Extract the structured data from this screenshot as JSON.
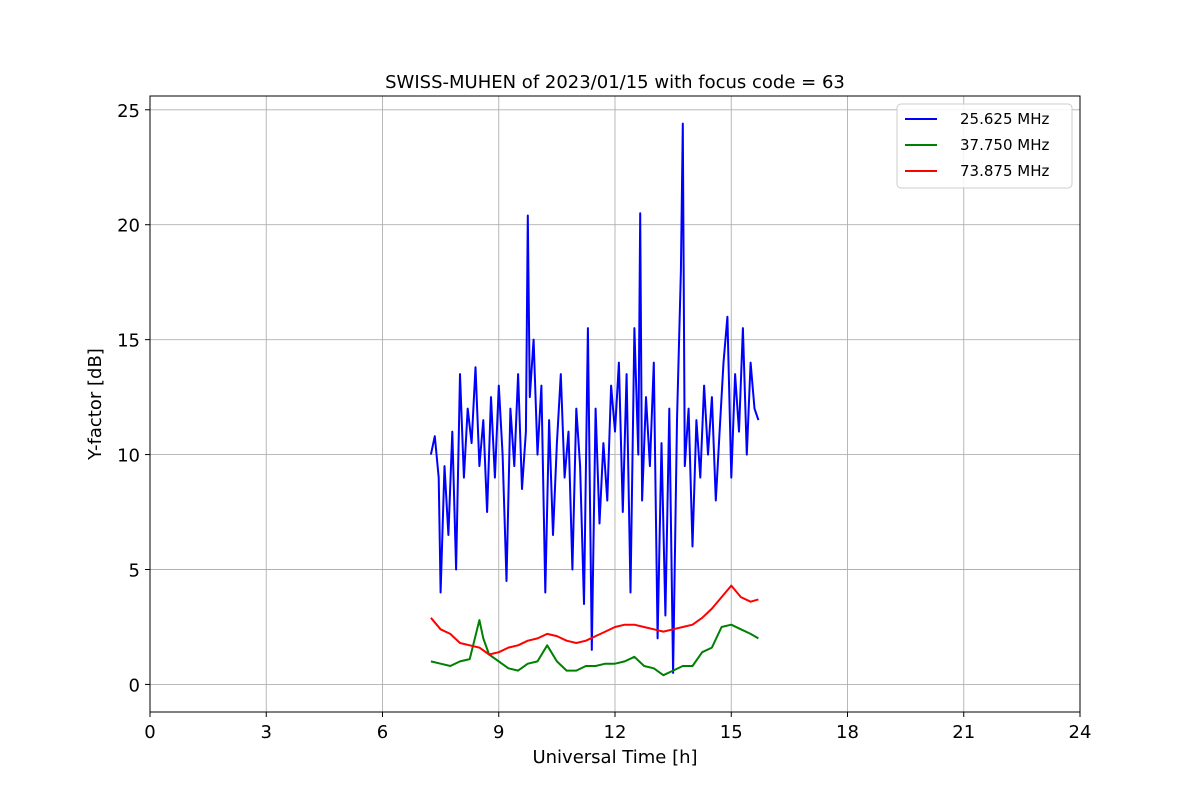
{
  "chart_data": {
    "type": "line",
    "title": "SWISS-MUHEN of 2023/01/15 with focus code = 63",
    "xlabel": "Universal Time [h]",
    "ylabel": "Y-factor [dB]",
    "xlim": [
      0,
      24
    ],
    "ylim": [
      -1.2,
      25.6
    ],
    "x_ticks": [
      0,
      3,
      6,
      9,
      12,
      15,
      18,
      21,
      24
    ],
    "y_ticks": [
      0,
      5,
      10,
      15,
      20,
      25
    ],
    "grid": true,
    "legend_position": "top-right",
    "series": [
      {
        "name": "25.625 MHz",
        "color": "#0000ff",
        "x": [
          7.25,
          7.35,
          7.45,
          7.5,
          7.6,
          7.7,
          7.8,
          7.9,
          8.0,
          8.1,
          8.2,
          8.3,
          8.4,
          8.5,
          8.6,
          8.7,
          8.8,
          8.9,
          9.0,
          9.1,
          9.2,
          9.3,
          9.4,
          9.5,
          9.6,
          9.7,
          9.75,
          9.8,
          9.9,
          10.0,
          10.1,
          10.2,
          10.3,
          10.4,
          10.5,
          10.6,
          10.7,
          10.8,
          10.9,
          11.0,
          11.1,
          11.2,
          11.3,
          11.4,
          11.5,
          11.6,
          11.7,
          11.8,
          11.9,
          12.0,
          12.1,
          12.2,
          12.3,
          12.4,
          12.5,
          12.6,
          12.65,
          12.7,
          12.8,
          12.9,
          13.0,
          13.1,
          13.2,
          13.3,
          13.4,
          13.5,
          13.6,
          13.7,
          13.75,
          13.8,
          13.9,
          14.0,
          14.1,
          14.2,
          14.3,
          14.4,
          14.5,
          14.6,
          14.7,
          14.8,
          14.9,
          15.0,
          15.1,
          15.2,
          15.3,
          15.4,
          15.5,
          15.6,
          15.7
        ],
        "y": [
          10.0,
          10.8,
          9.0,
          4.0,
          9.5,
          6.5,
          11.0,
          5.0,
          13.5,
          9.0,
          12.0,
          10.5,
          13.8,
          9.5,
          11.5,
          7.5,
          12.5,
          9.0,
          13.0,
          10.0,
          4.5,
          12.0,
          9.5,
          13.5,
          8.5,
          11.0,
          20.4,
          12.5,
          15.0,
          10.0,
          13.0,
          4.0,
          11.5,
          6.5,
          10.5,
          13.5,
          9.0,
          11.0,
          5.0,
          12.0,
          9.5,
          3.5,
          15.5,
          1.5,
          12.0,
          7.0,
          10.5,
          8.0,
          13.0,
          11.0,
          14.0,
          7.5,
          13.5,
          4.0,
          15.5,
          10.0,
          20.5,
          8.0,
          12.5,
          9.5,
          14.0,
          2.0,
          10.5,
          3.0,
          12.0,
          0.5,
          11.5,
          18.0,
          24.4,
          9.5,
          12.0,
          6.0,
          11.5,
          9.0,
          13.0,
          10.0,
          12.5,
          8.0,
          11.0,
          14.0,
          16.0,
          9.0,
          13.5,
          11.0,
          15.5,
          10.0,
          14.0,
          12.0,
          11.5
        ]
      },
      {
        "name": "37.750 MHz",
        "color": "#008000",
        "x": [
          7.25,
          7.5,
          7.75,
          8.0,
          8.25,
          8.5,
          8.6,
          8.75,
          9.0,
          9.25,
          9.5,
          9.75,
          10.0,
          10.25,
          10.5,
          10.75,
          11.0,
          11.25,
          11.5,
          11.75,
          12.0,
          12.25,
          12.5,
          12.75,
          13.0,
          13.25,
          13.5,
          13.75,
          14.0,
          14.25,
          14.5,
          14.75,
          15.0,
          15.25,
          15.5,
          15.7
        ],
        "y": [
          1.0,
          0.9,
          0.8,
          1.0,
          1.1,
          2.8,
          2.0,
          1.3,
          1.0,
          0.7,
          0.6,
          0.9,
          1.0,
          1.7,
          1.0,
          0.6,
          0.6,
          0.8,
          0.8,
          0.9,
          0.9,
          1.0,
          1.2,
          0.8,
          0.7,
          0.4,
          0.6,
          0.8,
          0.8,
          1.4,
          1.6,
          2.5,
          2.6,
          2.4,
          2.2,
          2.0
        ]
      },
      {
        "name": "73.875 MHz",
        "color": "#ff0000",
        "x": [
          7.25,
          7.5,
          7.75,
          8.0,
          8.25,
          8.5,
          8.75,
          9.0,
          9.25,
          9.5,
          9.75,
          10.0,
          10.25,
          10.5,
          10.75,
          11.0,
          11.25,
          11.5,
          11.75,
          12.0,
          12.25,
          12.5,
          12.75,
          13.0,
          13.25,
          13.5,
          13.75,
          14.0,
          14.25,
          14.5,
          14.75,
          15.0,
          15.25,
          15.5,
          15.7
        ],
        "y": [
          2.9,
          2.4,
          2.2,
          1.8,
          1.7,
          1.6,
          1.3,
          1.4,
          1.6,
          1.7,
          1.9,
          2.0,
          2.2,
          2.1,
          1.9,
          1.8,
          1.9,
          2.1,
          2.3,
          2.5,
          2.6,
          2.6,
          2.5,
          2.4,
          2.3,
          2.4,
          2.5,
          2.6,
          2.9,
          3.3,
          3.8,
          4.3,
          3.8,
          3.6,
          3.7
        ]
      }
    ]
  }
}
